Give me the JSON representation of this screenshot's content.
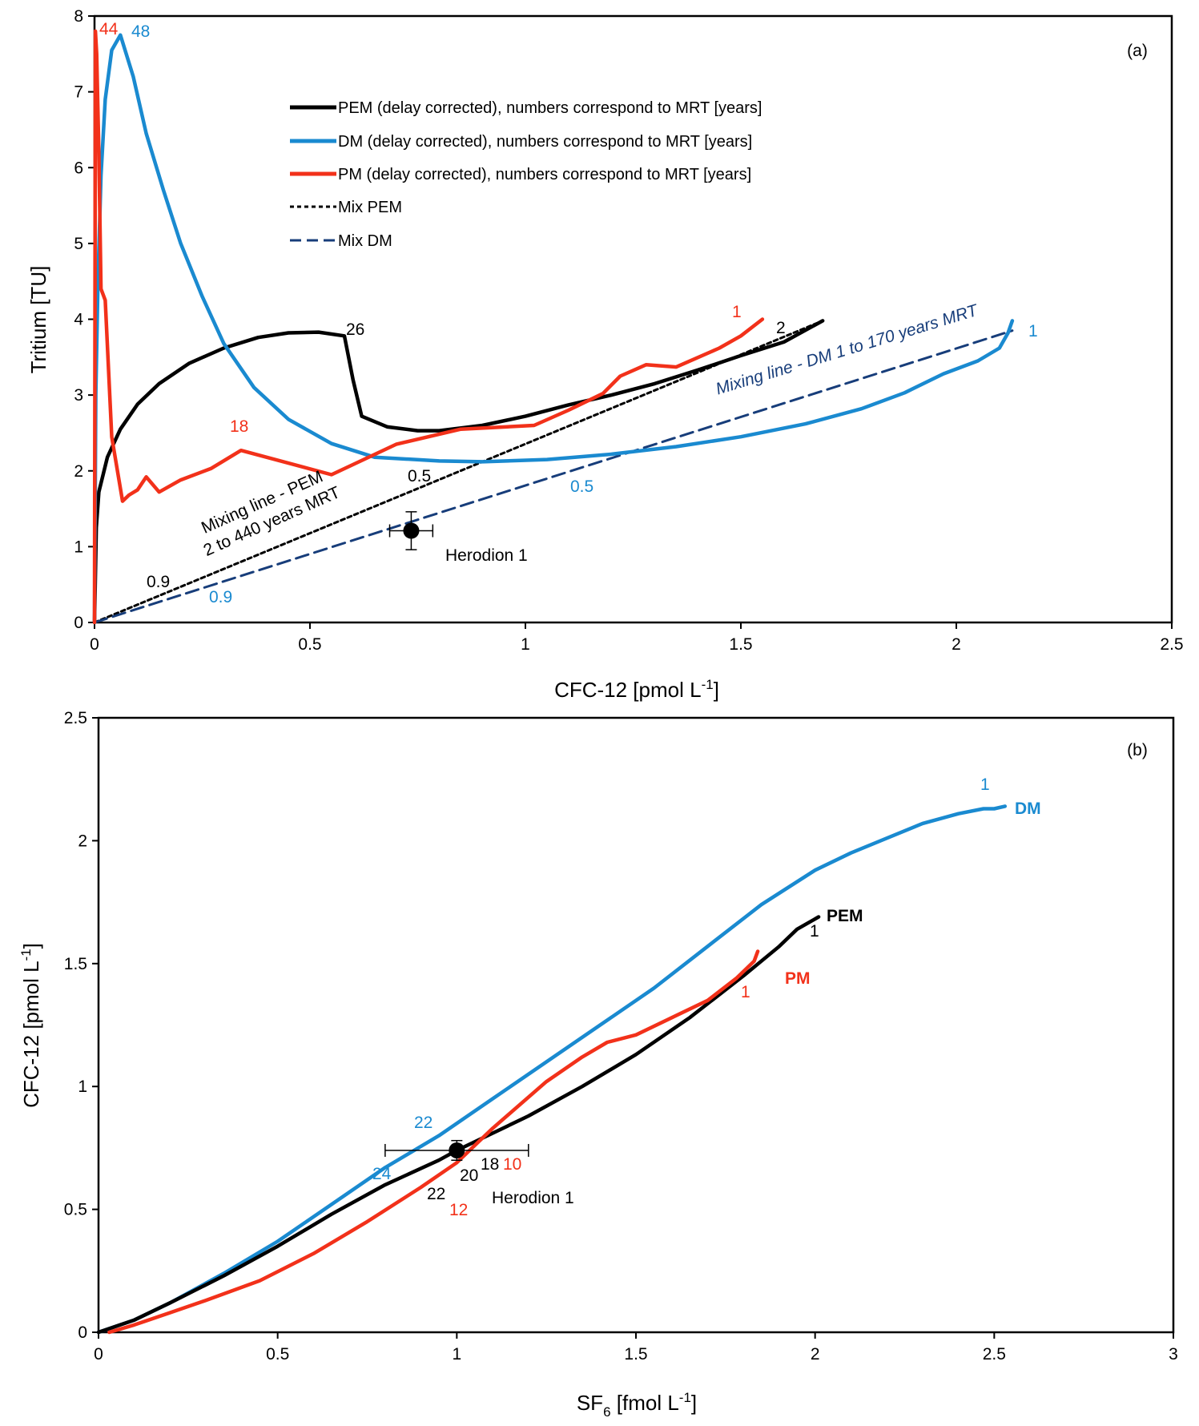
{
  "chart_data": [
    {
      "panel": "(a)",
      "type": "line",
      "xlabel": "CFC-12 [pmol L",
      "xlabel_sup": "-1",
      "xlabel_end": "]",
      "ylabel": "Tritium [TU]",
      "xlim": [
        0,
        2.5
      ],
      "ylim": [
        0,
        8
      ],
      "xticks": [
        "0",
        "0.5",
        "1",
        "1.5",
        "2",
        "2.5"
      ],
      "yticks": [
        "0",
        "1",
        "2",
        "3",
        "4",
        "5",
        "6",
        "7",
        "8"
      ],
      "legend_placement": "top-center",
      "colors": {
        "PEM": "#000000",
        "DM": "#1a8ad0",
        "PM": "#f2311a",
        "MixDM": "#173d7a"
      },
      "series": [
        {
          "name": "PEM (delay corrected), numbers correspond to MRT [years]",
          "key": "PEM",
          "style": "solid",
          "points": [
            [
              1.69,
              3.98
            ],
            [
              1.6,
              3.7
            ],
            [
              1.5,
              3.52
            ],
            [
              1.4,
              3.33
            ],
            [
              1.3,
              3.15
            ],
            [
              1.2,
              3.0
            ],
            [
              1.1,
              2.87
            ],
            [
              1.0,
              2.72
            ],
            [
              0.9,
              2.6
            ],
            [
              0.8,
              2.53
            ],
            [
              0.75,
              2.53
            ],
            [
              0.68,
              2.58
            ],
            [
              0.62,
              2.72
            ],
            [
              0.6,
              3.2
            ],
            [
              0.58,
              3.78
            ],
            [
              0.52,
              3.83
            ],
            [
              0.45,
              3.82
            ],
            [
              0.38,
              3.76
            ],
            [
              0.3,
              3.62
            ],
            [
              0.22,
              3.42
            ],
            [
              0.15,
              3.15
            ],
            [
              0.1,
              2.88
            ],
            [
              0.06,
              2.55
            ],
            [
              0.03,
              2.18
            ],
            [
              0.01,
              1.72
            ],
            [
              0.004,
              1.25
            ],
            [
              0.0,
              0.0
            ]
          ]
        },
        {
          "name": "DM (delay corrected), numbers correspond to MRT [years]",
          "key": "DM",
          "style": "solid",
          "points": [
            [
              2.13,
              3.98
            ],
            [
              2.12,
              3.82
            ],
            [
              2.1,
              3.62
            ],
            [
              2.05,
              3.45
            ],
            [
              1.97,
              3.28
            ],
            [
              1.88,
              3.03
            ],
            [
              1.78,
              2.82
            ],
            [
              1.65,
              2.62
            ],
            [
              1.5,
              2.45
            ],
            [
              1.35,
              2.32
            ],
            [
              1.2,
              2.22
            ],
            [
              1.05,
              2.15
            ],
            [
              0.9,
              2.12
            ],
            [
              0.8,
              2.13
            ],
            [
              0.65,
              2.18
            ],
            [
              0.55,
              2.36
            ],
            [
              0.45,
              2.68
            ],
            [
              0.37,
              3.1
            ],
            [
              0.3,
              3.68
            ],
            [
              0.25,
              4.3
            ],
            [
              0.2,
              5.0
            ],
            [
              0.16,
              5.7
            ],
            [
              0.12,
              6.45
            ],
            [
              0.09,
              7.2
            ],
            [
              0.06,
              7.75
            ],
            [
              0.04,
              7.55
            ],
            [
              0.025,
              6.9
            ],
            [
              0.015,
              5.9
            ],
            [
              0.008,
              4.5
            ],
            [
              0.003,
              3.0
            ],
            [
              0.0,
              0.0
            ]
          ]
        },
        {
          "name": "PM (delay corrected), numbers correspond to MRT [years]",
          "key": "PM",
          "style": "solid",
          "points": [
            [
              1.55,
              4.0
            ],
            [
              1.5,
              3.78
            ],
            [
              1.45,
              3.62
            ],
            [
              1.35,
              3.37
            ],
            [
              1.28,
              3.4
            ],
            [
              1.22,
              3.25
            ],
            [
              1.18,
              3.02
            ],
            [
              1.1,
              2.8
            ],
            [
              1.02,
              2.6
            ],
            [
              0.85,
              2.55
            ],
            [
              0.7,
              2.35
            ],
            [
              0.55,
              1.95
            ],
            [
              0.34,
              2.27
            ],
            [
              0.27,
              2.03
            ],
            [
              0.2,
              1.88
            ],
            [
              0.15,
              1.72
            ],
            [
              0.12,
              1.92
            ],
            [
              0.1,
              1.75
            ],
            [
              0.08,
              1.68
            ],
            [
              0.065,
              1.6
            ],
            [
              0.04,
              2.45
            ],
            [
              0.025,
              4.25
            ],
            [
              0.015,
              4.4
            ],
            [
              0.01,
              6.2
            ],
            [
              0.005,
              7.5
            ],
            [
              0.002,
              7.8
            ],
            [
              0.0,
              0.0
            ]
          ]
        },
        {
          "name": "Mix PEM",
          "key": "MixPEM",
          "style": "short-dash",
          "points": [
            [
              0.0,
              0.0
            ],
            [
              1.69,
              3.98
            ]
          ]
        },
        {
          "name": "Mix DM",
          "key": "MixDM",
          "style": "long-dash",
          "points": [
            [
              0.0,
              0.0
            ],
            [
              2.13,
              3.85
            ]
          ]
        }
      ],
      "sample": {
        "name": "Herodion 1",
        "x": 0.735,
        "y": 1.21,
        "xerr": 0.05,
        "yerr": 0.25
      },
      "annotations": {
        "pem_26": "26",
        "pem_2": "2",
        "pem_05": "0.5",
        "pem_09": "0.9",
        "dm_48": "48",
        "dm_1": "1",
        "dm_05": "0.5",
        "dm_09": "0.9",
        "pm_44": "44",
        "pm_18": "18",
        "pm_1": "1",
        "mix_pem_line1": "Mixing line - PEM",
        "mix_pem_line2": "2 to 440 years MRT",
        "mix_dm": "Mixing line - DM 1 to 170 years MRT"
      }
    },
    {
      "panel": "(b)",
      "type": "line",
      "xlabel": "SF",
      "xlabel_sub": "6",
      "xlabel_end": " [fmol L",
      "xlabel_sup": "-1",
      "xlabel_close": "]",
      "ylabel": "CFC-12 [pmol L",
      "ylabel_sup": "-1",
      "ylabel_end": "]",
      "xlim": [
        0,
        3
      ],
      "ylim": [
        0,
        2.5
      ],
      "xticks": [
        "0",
        "0.5",
        "1",
        "1.5",
        "2",
        "2.5",
        "3"
      ],
      "yticks": [
        "0",
        "0.5",
        "1",
        "1.5",
        "2",
        "2.5"
      ],
      "series": [
        {
          "name": "DM",
          "key": "DM",
          "points": [
            [
              0.0,
              0.0
            ],
            [
              0.1,
              0.05
            ],
            [
              0.2,
              0.12
            ],
            [
              0.35,
              0.24
            ],
            [
              0.5,
              0.37
            ],
            [
              0.65,
              0.52
            ],
            [
              0.8,
              0.67
            ],
            [
              0.95,
              0.8
            ],
            [
              1.1,
              0.95
            ],
            [
              1.25,
              1.1
            ],
            [
              1.4,
              1.25
            ],
            [
              1.55,
              1.4
            ],
            [
              1.7,
              1.57
            ],
            [
              1.85,
              1.74
            ],
            [
              2.0,
              1.88
            ],
            [
              2.1,
              1.95
            ],
            [
              2.2,
              2.01
            ],
            [
              2.3,
              2.07
            ],
            [
              2.4,
              2.11
            ],
            [
              2.47,
              2.13
            ],
            [
              2.5,
              2.13
            ],
            [
              2.53,
              2.14
            ]
          ]
        },
        {
          "name": "PEM",
          "key": "PEM",
          "points": [
            [
              0.0,
              0.0
            ],
            [
              0.1,
              0.05
            ],
            [
              0.2,
              0.12
            ],
            [
              0.35,
              0.23
            ],
            [
              0.5,
              0.35
            ],
            [
              0.65,
              0.48
            ],
            [
              0.8,
              0.6
            ],
            [
              0.95,
              0.7
            ],
            [
              1.0,
              0.74
            ],
            [
              1.1,
              0.81
            ],
            [
              1.2,
              0.88
            ],
            [
              1.35,
              1.0
            ],
            [
              1.5,
              1.13
            ],
            [
              1.65,
              1.28
            ],
            [
              1.8,
              1.45
            ],
            [
              1.9,
              1.57
            ],
            [
              1.95,
              1.64
            ],
            [
              2.01,
              1.69
            ]
          ]
        },
        {
          "name": "PM",
          "key": "PM",
          "points": [
            [
              0.03,
              0.0
            ],
            [
              0.1,
              0.03
            ],
            [
              0.2,
              0.08
            ],
            [
              0.3,
              0.13
            ],
            [
              0.45,
              0.21
            ],
            [
              0.6,
              0.32
            ],
            [
              0.75,
              0.45
            ],
            [
              0.9,
              0.59
            ],
            [
              1.0,
              0.69
            ],
            [
              1.1,
              0.83
            ],
            [
              1.25,
              1.02
            ],
            [
              1.35,
              1.12
            ],
            [
              1.42,
              1.18
            ],
            [
              1.5,
              1.21
            ],
            [
              1.6,
              1.28
            ],
            [
              1.7,
              1.35
            ],
            [
              1.78,
              1.44
            ],
            [
              1.83,
              1.51
            ],
            [
              1.84,
              1.55
            ]
          ]
        }
      ],
      "sample": {
        "name": "Herodion 1",
        "x": 1.0,
        "y": 0.74,
        "xerr": 0.2,
        "yerr": 0.04
      },
      "annotations": {
        "dm_label": "DM",
        "pem_label": "PEM",
        "pm_label": "PM",
        "dm_1": "1",
        "pem_1": "1",
        "pm_1": "1",
        "dm_22": "22",
        "dm_24": "24",
        "pem_22": "22",
        "pem_20": "20",
        "pem_18": "18",
        "pm_10": "10",
        "pm_12": "12"
      }
    }
  ]
}
